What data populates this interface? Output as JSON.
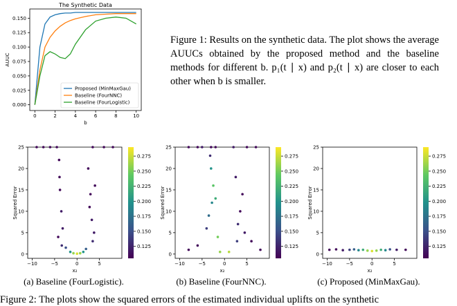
{
  "figure1": {
    "caption": "Figure 1: Results on the synthetic data. The plot shows the average AUUCs obtained by the proposed method and the baseline methods for different b. p₁(t ∣ x) and p₂(t ∣ x) are closer to each other when b is smaller."
  },
  "figure2": {
    "subcaptions": [
      "(a) Baseline (FourLogistic).",
      "(b) Baseline (FourNNC).",
      "(c) Proposed (MinMaxGau)."
    ],
    "caption": "Figure 2: The plots show the squared errors of the estimated individual uplifts on the synthetic"
  },
  "chart_data": [
    {
      "type": "line",
      "title": "The Synthetic Data",
      "xlabel": "b",
      "ylabel": "AUUC",
      "x": [
        0,
        0.5,
        1,
        1.5,
        2,
        2.5,
        3,
        3.5,
        4,
        5,
        6,
        7,
        8,
        9,
        10
      ],
      "series": [
        {
          "name": "Proposed (MinMaxGau)",
          "color": "#1f77b4",
          "values": [
            0,
            0.1,
            0.14,
            0.152,
            0.156,
            0.158,
            0.159,
            0.159,
            0.16,
            0.16,
            0.16,
            0.16,
            0.16,
            0.16,
            0.16
          ]
        },
        {
          "name": "Baseline (FourNNC)",
          "color": "#ff7f0e",
          "values": [
            0,
            0.06,
            0.1,
            0.117,
            0.128,
            0.136,
            0.142,
            0.146,
            0.149,
            0.153,
            0.156,
            0.157,
            0.158,
            0.158,
            0.158
          ]
        },
        {
          "name": "Baseline (FourLogistic)",
          "color": "#2ca02c",
          "values": [
            0,
            0.05,
            0.085,
            0.092,
            0.088,
            0.082,
            0.08,
            0.088,
            0.105,
            0.13,
            0.145,
            0.15,
            0.152,
            0.15,
            0.14
          ]
        }
      ],
      "xlim": [
        -0.5,
        10.5
      ],
      "ylim": [
        -0.01,
        0.166
      ],
      "xticks": [
        0,
        2,
        4,
        6,
        8,
        10
      ],
      "yticks": [
        {
          "value": 0,
          "label": "0.000"
        },
        0.025,
        {
          "value": 0.05,
          "label": "0.050"
        },
        0.075,
        {
          "value": 0.1,
          "label": "0.100"
        },
        0.125,
        {
          "value": 0.15,
          "label": "0.150"
        }
      ],
      "legend": "lower right"
    },
    {
      "type": "scatter",
      "xlabel": "x₂",
      "ylabel": "Squared Error",
      "colormap": "viridis",
      "x": [
        -9,
        -7.5,
        -6,
        -4.5,
        3.5,
        6,
        8,
        -4,
        -3.8,
        -3.5,
        -3.2,
        -4.2,
        -3.9,
        -3.4,
        2.5,
        3,
        3.3,
        3.8,
        2.8,
        3.5,
        4,
        -1.5,
        -0.8,
        0,
        0.7,
        1.4,
        -2.5,
        2
      ],
      "values": [
        25,
        25,
        25,
        25,
        25,
        25,
        25,
        22,
        15,
        10,
        6,
        4,
        18,
        2,
        20,
        14,
        8,
        5,
        11,
        3,
        16,
        0.5,
        0.2,
        0.1,
        0.2,
        0.5,
        1.5,
        1.2
      ],
      "c": [
        0.11,
        0.11,
        0.11,
        0.11,
        0.11,
        0.11,
        0.11,
        0.11,
        0.11,
        0.12,
        0.12,
        0.11,
        0.11,
        0.13,
        0.11,
        0.11,
        0.12,
        0.12,
        0.11,
        0.13,
        0.11,
        0.2,
        0.26,
        0.28,
        0.26,
        0.2,
        0.15,
        0.16
      ],
      "xlim": [
        -11,
        10
      ],
      "ylim": [
        -1,
        25
      ],
      "xticks": [
        {
          "value": -10,
          "label": "−10"
        },
        {
          "value": -5,
          "label": "−5"
        },
        0,
        5
      ],
      "yticks": [
        0,
        5,
        10,
        15,
        20,
        25
      ],
      "clim": [
        0.105,
        0.29
      ],
      "cticks": [
        0.125,
        {
          "value": 0.15,
          "label": "0.150"
        },
        0.175,
        {
          "value": 0.2,
          "label": "0.200"
        },
        0.225,
        {
          "value": 0.25,
          "label": "0.250"
        },
        0.275
      ]
    },
    {
      "type": "scatter",
      "xlabel": "x₂",
      "ylabel": "Squared Error",
      "colormap": "viridis",
      "x": [
        -8,
        -6,
        -5,
        -3,
        -2,
        2,
        5,
        7,
        -3,
        -2.5,
        -2,
        -3.5,
        -4,
        -1.5,
        -2.8,
        -3.2,
        2.5,
        3.5,
        4.5,
        3,
        4,
        2.8,
        -6,
        6,
        -8,
        8,
        -1,
        1
      ],
      "values": [
        25,
        25,
        25,
        25,
        25,
        25,
        25,
        25,
        20,
        16,
        13,
        9,
        6,
        4,
        12,
        23,
        18,
        10,
        5,
        7,
        14,
        3,
        2,
        3,
        1,
        1,
        0.5,
        0.5
      ],
      "c": [
        0.11,
        0.11,
        0.12,
        0.11,
        0.11,
        0.12,
        0.11,
        0.11,
        0.2,
        0.24,
        0.22,
        0.17,
        0.14,
        0.25,
        0.19,
        0.13,
        0.12,
        0.11,
        0.12,
        0.13,
        0.11,
        0.14,
        0.11,
        0.11,
        0.11,
        0.11,
        0.26,
        0.27
      ],
      "xlim": [
        -11,
        10
      ],
      "ylim": [
        -1,
        25
      ],
      "xticks": [
        {
          "value": -10,
          "label": "−10"
        },
        {
          "value": -5,
          "label": "−5"
        },
        0,
        5
      ],
      "yticks": [
        0,
        5,
        10,
        15,
        20,
        25
      ],
      "clim": [
        0.105,
        0.29
      ],
      "cticks": [
        0.125,
        {
          "value": 0.15,
          "label": "0.150"
        },
        0.175,
        {
          "value": 0.2,
          "label": "0.200"
        },
        0.225,
        {
          "value": 0.25,
          "label": "0.250"
        },
        0.275
      ]
    },
    {
      "type": "scatter",
      "xlabel": "x₂",
      "ylabel": "Squared Error",
      "colormap": "viridis",
      "x": [
        -9.5,
        -8,
        -6.5,
        -5,
        -4,
        -3,
        -2,
        -1,
        0,
        1,
        2,
        3,
        4,
        5.5,
        7.5
      ],
      "values": [
        1,
        1.1,
        0.9,
        1,
        1.1,
        0.9,
        1,
        0.8,
        0.7,
        0.8,
        1,
        0.9,
        1.1,
        1,
        1
      ],
      "c": [
        0.11,
        0.11,
        0.12,
        0.14,
        0.16,
        0.19,
        0.22,
        0.26,
        0.28,
        0.26,
        0.22,
        0.19,
        0.15,
        0.12,
        0.11
      ],
      "xlim": [
        -11,
        10
      ],
      "ylim": [
        -1,
        25
      ],
      "xticks": [
        {
          "value": -10,
          "label": "−10"
        },
        {
          "value": -5,
          "label": "−5"
        },
        0,
        5
      ],
      "yticks": [
        0,
        5,
        10,
        15,
        20,
        25
      ],
      "clim": [
        0.105,
        0.29
      ],
      "cticks": [
        0.125,
        {
          "value": 0.15,
          "label": "0.150"
        },
        0.175,
        {
          "value": 0.2,
          "label": "0.200"
        },
        0.225,
        {
          "value": 0.25,
          "label": "0.250"
        },
        0.275
      ]
    }
  ]
}
